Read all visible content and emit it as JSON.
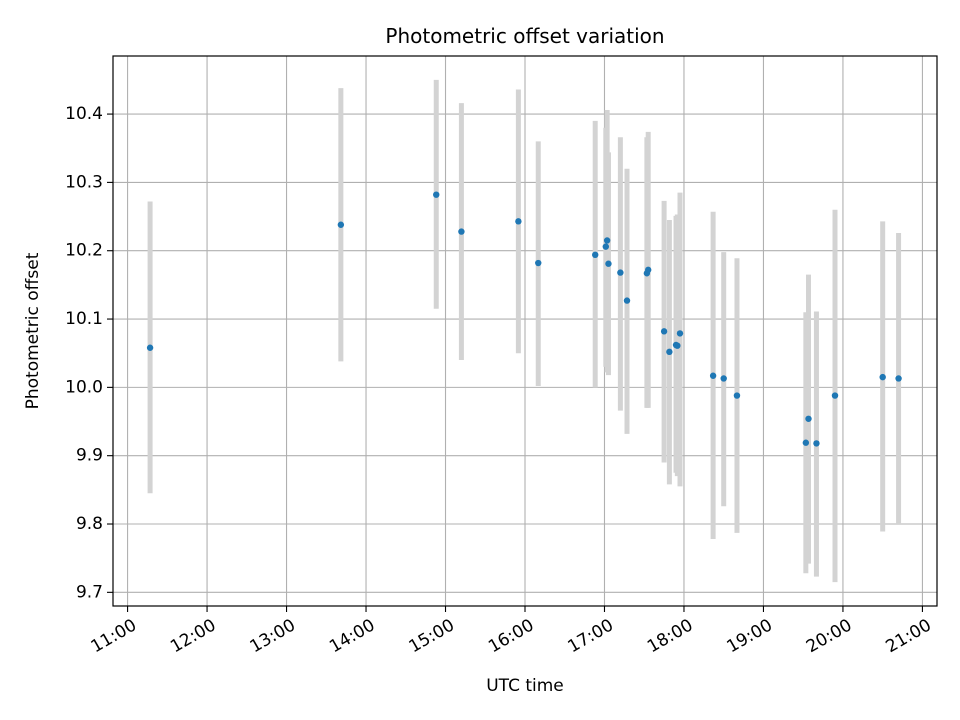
{
  "chart_data": {
    "type": "scatter",
    "title": "Photometric offset variation",
    "xlabel": "UTC time",
    "ylabel": "Photometric offset",
    "xlim": [
      "10:49",
      "21:11"
    ],
    "ylim": [
      9.68,
      10.485
    ],
    "grid": true,
    "x_ticks": [
      "11:00",
      "12:00",
      "13:00",
      "14:00",
      "15:00",
      "16:00",
      "17:00",
      "18:00",
      "19:00",
      "20:00",
      "21:00"
    ],
    "y_ticks": [
      9.7,
      9.8,
      9.9,
      10.0,
      10.1,
      10.2,
      10.3,
      10.4
    ],
    "y_tick_labels": [
      "9.7",
      "9.8",
      "9.9",
      "10.0",
      "10.1",
      "10.2",
      "10.3",
      "10.4"
    ],
    "point_color": "#1f77b4",
    "errorbar_color": "#d3d3d3",
    "points": [
      {
        "x": "11:17",
        "y": 10.058,
        "ymin": 9.845,
        "ymax": 10.272
      },
      {
        "x": "13:41",
        "y": 10.238,
        "ymin": 10.038,
        "ymax": 10.438
      },
      {
        "x": "14:53",
        "y": 10.282,
        "ymin": 10.115,
        "ymax": 10.45
      },
      {
        "x": "15:12",
        "y": 10.228,
        "ymin": 10.04,
        "ymax": 10.416
      },
      {
        "x": "15:55",
        "y": 10.243,
        "ymin": 10.05,
        "ymax": 10.436
      },
      {
        "x": "16:10",
        "y": 10.182,
        "ymin": 10.002,
        "ymax": 10.36
      },
      {
        "x": "16:53",
        "y": 10.194,
        "ymin": 10.0,
        "ymax": 10.39
      },
      {
        "x": "17:01",
        "y": 10.206,
        "ymin": 10.03,
        "ymax": 10.38
      },
      {
        "x": "17:02",
        "y": 10.215,
        "ymin": 10.022,
        "ymax": 10.406
      },
      {
        "x": "17:03",
        "y": 10.181,
        "ymin": 10.018,
        "ymax": 10.344
      },
      {
        "x": "17:12",
        "y": 10.168,
        "ymin": 9.966,
        "ymax": 10.366
      },
      {
        "x": "17:17",
        "y": 10.127,
        "ymin": 9.932,
        "ymax": 10.32
      },
      {
        "x": "17:32",
        "y": 10.167,
        "ymin": 9.97,
        "ymax": 10.366
      },
      {
        "x": "17:33",
        "y": 10.172,
        "ymin": 9.97,
        "ymax": 10.374
      },
      {
        "x": "17:45",
        "y": 10.082,
        "ymin": 9.89,
        "ymax": 10.273
      },
      {
        "x": "17:49",
        "y": 10.052,
        "ymin": 9.858,
        "ymax": 10.245
      },
      {
        "x": "17:54",
        "y": 10.062,
        "ymin": 9.875,
        "ymax": 10.251
      },
      {
        "x": "17:55",
        "y": 10.061,
        "ymin": 9.87,
        "ymax": 10.253
      },
      {
        "x": "17:57",
        "y": 10.079,
        "ymin": 9.855,
        "ymax": 10.285
      },
      {
        "x": "18:22",
        "y": 10.017,
        "ymin": 9.778,
        "ymax": 10.257
      },
      {
        "x": "18:30",
        "y": 10.013,
        "ymin": 9.826,
        "ymax": 10.198
      },
      {
        "x": "18:40",
        "y": 9.988,
        "ymin": 9.787,
        "ymax": 10.189
      },
      {
        "x": "19:32",
        "y": 9.919,
        "ymin": 9.728,
        "ymax": 10.11
      },
      {
        "x": "19:34",
        "y": 9.954,
        "ymin": 9.742,
        "ymax": 10.165
      },
      {
        "x": "19:40",
        "y": 9.918,
        "ymin": 9.723,
        "ymax": 10.111
      },
      {
        "x": "19:54",
        "y": 9.988,
        "ymin": 9.715,
        "ymax": 10.26
      },
      {
        "x": "20:30",
        "y": 10.015,
        "ymin": 9.789,
        "ymax": 10.243
      },
      {
        "x": "20:42",
        "y": 10.013,
        "ymin": 9.8,
        "ymax": 10.226
      }
    ]
  }
}
